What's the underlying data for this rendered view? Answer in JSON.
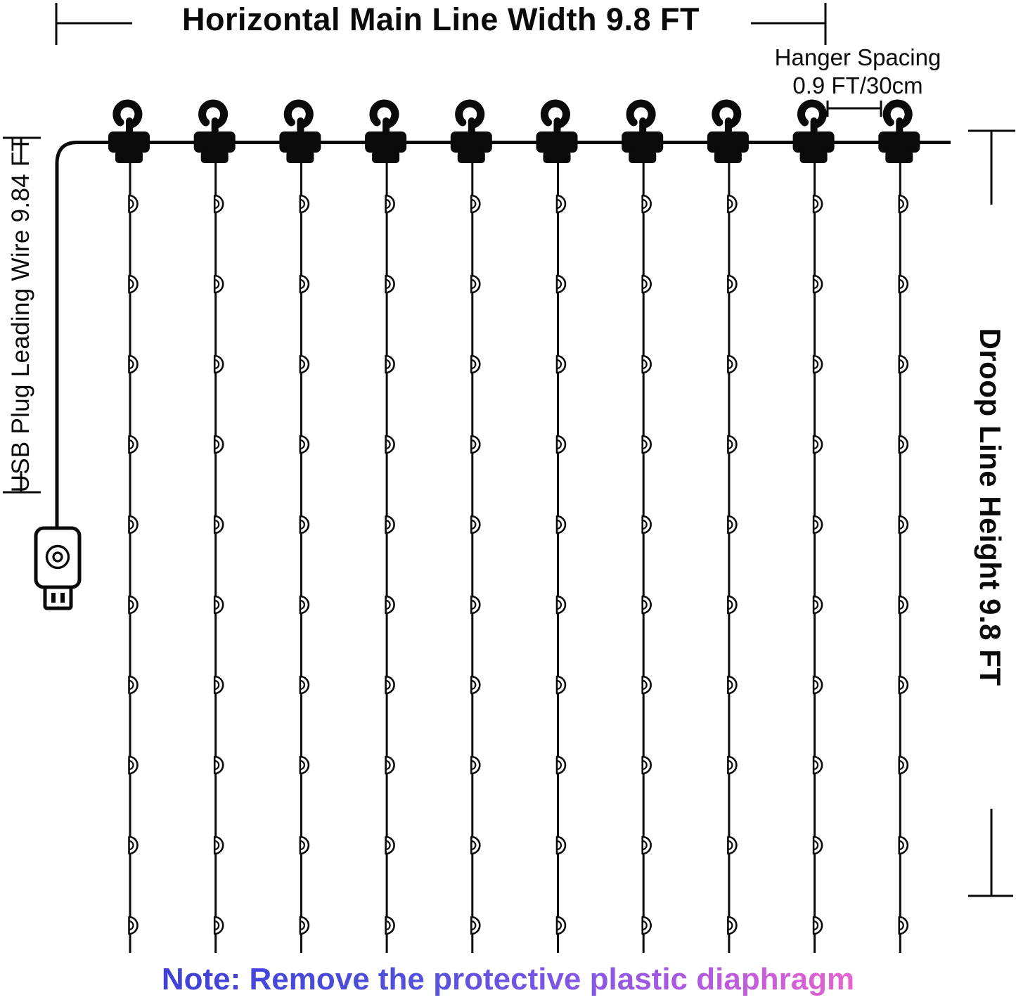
{
  "diagram": {
    "title": "Horizontal Main Line Width 9.8 FT",
    "hanger_spacing_line1": "Hanger Spacing",
    "hanger_spacing_line2": "0.9 FT/30cm",
    "left_label": "USB Plug Leading Wire 9.84 FT",
    "right_label": "Droop Line Height 9.8 FT",
    "note": "Note: Remove the protective plastic diaphragm",
    "hanger_count": 10,
    "beads_per_line": 10,
    "colors": {
      "line": "#0a0a0a",
      "bead_fill": "#ffffff",
      "note_gradient": [
        "#4040d6",
        "#5050da",
        "#7e57e4",
        "#aa5ae0",
        "#e763cf"
      ]
    }
  }
}
